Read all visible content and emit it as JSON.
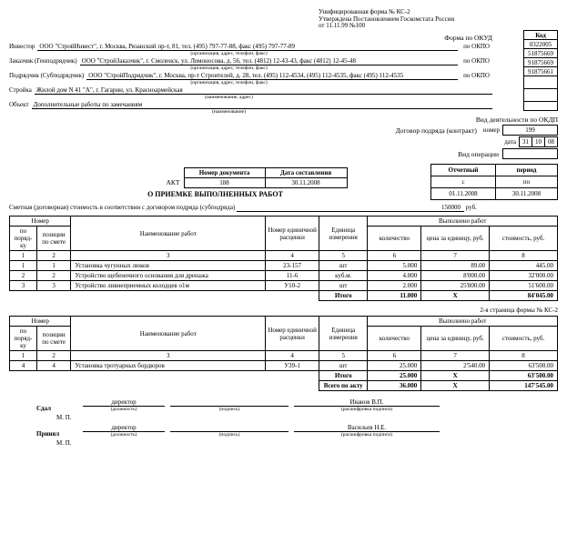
{
  "header": {
    "line1": "Унифицированная форма № КС-2",
    "line2": "Утверждена Постановлением Госкомстата России",
    "line3": "от 11.11.99 №100"
  },
  "codes": {
    "kod_hdr": "Код",
    "okud_lbl": "Форма по ОКУД",
    "okud": "0322005",
    "okpo_lbl": "по ОКПО",
    "okpo1": "51875669",
    "okpo2": "91875669",
    "okpo3": "91875661",
    "okdp_lbl": "Вид деятельности по ОКДП",
    "contract_lbl": "Договор подряда (контракт)",
    "num_lbl": "номер",
    "contract_num": "199",
    "date_lbl": "дата",
    "d": "31",
    "m": "10",
    "y": "08",
    "oper_lbl": "Вид операции"
  },
  "parties": {
    "investor_lbl": "Инвестор",
    "investor": "ООО \"СтройИнвест\", г. Москва, Рязанский пр-т, 81, тел. (495) 797-77-88, факс (495) 797-77-89",
    "customer_lbl": "Заказчик (Генподрядчик)",
    "customer": "ООО \"СтройЗаказчик\", г. Смоленск, ул. Ломоносова, д. 56, тел. (4812) 12-43-43, факс (4812) 12-45-48",
    "contractor_lbl": "Подрядчик (Субподрядчик)",
    "contractor": "ООО \"СтройПодрядчик\", г. Москва, пр-т Строителей, д. 28, тел. (495) 112-4534, (495) 112-4535, факс (495) 112-4535",
    "site_lbl": "Стройка",
    "site": "Жилой дом N 41 \"А\", г. Гагарин, ул. Красноармейская",
    "object_lbl": "Объект",
    "object": "Дополнительные работы по замечаниям",
    "sub_org": "(организация, адрес, телефон, факс)",
    "sub_name": "(наименование, адрес)",
    "sub_name2": "(наименование)"
  },
  "akt": {
    "doc_num_hdr": "Номер документа",
    "doc_date_hdr": "Дата составления",
    "doc_num": "188",
    "doc_date": "30.11.2008",
    "period_hdr": "Отчетный",
    "period_hdr2": "период",
    "from_lbl": "с",
    "to_lbl": "по",
    "from": "01.11.2008",
    "to": "30.11.2008",
    "akt_lbl": "АКТ",
    "title": "О ПРИЕМКЕ ВЫПОЛНЕННЫХ РАБОТ"
  },
  "cost": {
    "lbl": "Сметная (договорная) стоимость в соответствии с договором подряда (субподряда)",
    "value": "150000",
    "unit": "руб."
  },
  "table": {
    "h_num": "Номер",
    "h_order": "по поряд-ку",
    "h_pos": "позиции по смете",
    "h_name": "Наименование работ",
    "h_rate": "Номер единичной расценки",
    "h_unit": "Единица измерения",
    "h_done": "Выполнено работ",
    "h_qty": "количество",
    "h_price": "цена за единицу, руб.",
    "h_cost": "стоимость, руб.",
    "c1": "1",
    "c2": "2",
    "c3": "3",
    "c4": "4",
    "c5": "5",
    "c6": "6",
    "c7": "7",
    "c8": "8",
    "itogo": "Итого",
    "vsego": "Всего по акту",
    "x": "X"
  },
  "rows1": [
    {
      "n": "1",
      "p": "1",
      "name": "Установка чугунных люков",
      "rate": "23-157",
      "unit": "шт",
      "qty": "5.000",
      "price": "89.00",
      "cost": "445.00"
    },
    {
      "n": "2",
      "p": "2",
      "name": "Устройство щебеночного основания для дренажа",
      "rate": "11-6",
      "unit": "куб.м.",
      "qty": "4.000",
      "price": "8'000.00",
      "cost": "32'000.00"
    },
    {
      "n": "3",
      "p": "3",
      "name": "Устройство ливнеприемных колодцев о1м",
      "rate": "У10-2",
      "unit": "шт",
      "qty": "2.000",
      "price": "25'800.00",
      "cost": "51'600.00"
    }
  ],
  "total1": {
    "qty": "11.000",
    "cost": "84'045.00"
  },
  "page2_lbl": "2-я страница формы № КС-2",
  "rows2": [
    {
      "n": "4",
      "p": "4",
      "name": "Установка тротуарных бордюров",
      "rate": "У39-1",
      "unit": "шт",
      "qty": "25.000",
      "price": "2'540.00",
      "cost": "63'500.00"
    }
  ],
  "total2": {
    "qty": "25.000",
    "cost": "63'500.00"
  },
  "grand": {
    "qty": "36.000",
    "cost": "147'545.00"
  },
  "sign": {
    "sdal": "Сдал",
    "prinyal": "Принял",
    "pos": "директор",
    "name1": "Иванов В.П.",
    "name2": "Васильев Н.Е.",
    "mp": "М. П.",
    "sub_pos": "(должность)",
    "sub_sig": "(подпись)",
    "sub_name": "(расшифровка подписи)"
  }
}
